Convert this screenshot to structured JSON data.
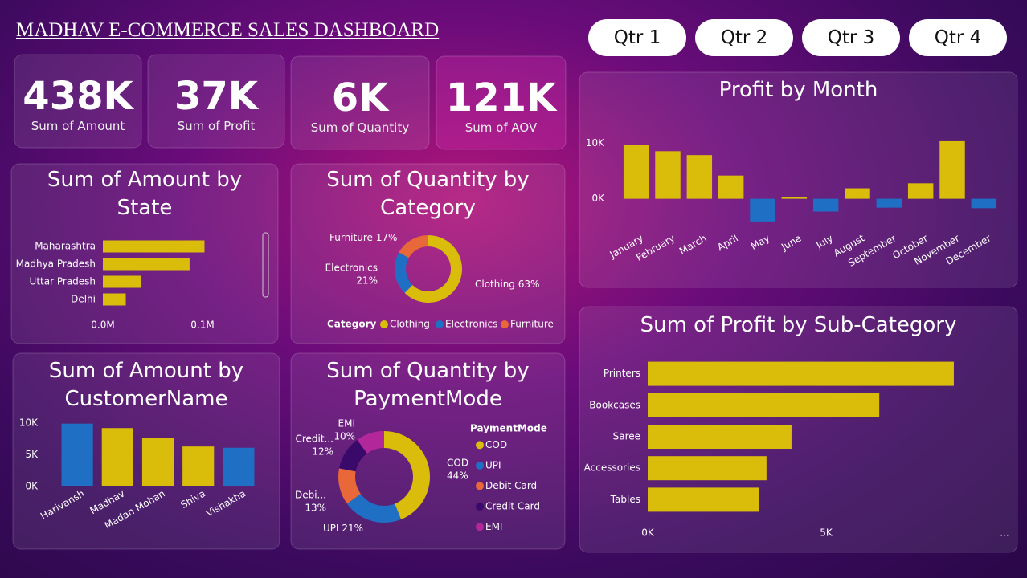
{
  "header": {
    "title": "MADHAV E-COMMERCE SALES DASHBOARD"
  },
  "filters": [
    "Qtr 1",
    "Qtr 2",
    "Qtr 3",
    "Qtr 4"
  ],
  "kpis": [
    {
      "value": "438K",
      "label": "Sum of Amount"
    },
    {
      "value": "37K",
      "label": "Sum of Profit"
    },
    {
      "value": "6K",
      "label": "Sum of Quantity"
    },
    {
      "value": "121K",
      "label": "Sum of AOV"
    }
  ],
  "chart_data": [
    {
      "type": "bar",
      "orientation": "horizontal",
      "title": "Sum of Amount by State",
      "categories": [
        "Maharashtra",
        "Madhya Pradesh",
        "Uttar Pradesh",
        "Delhi"
      ],
      "values": [
        102000,
        87000,
        38000,
        23000
      ],
      "color": "#d9bd0a",
      "xlim": [
        0,
        150000
      ],
      "xticks": [
        {
          "value": 0,
          "label": "0.0M"
        },
        {
          "value": 100000,
          "label": "0.1M"
        }
      ]
    },
    {
      "type": "pie",
      "donut": true,
      "title": "Sum of Quantity by Category",
      "categories": [
        "Clothing",
        "Electronics",
        "Furniture"
      ],
      "values": [
        63,
        21,
        17
      ],
      "value_labels": [
        "63%",
        "21%",
        "17%"
      ],
      "colors": [
        "#d9bd0a",
        "#1f6fc5",
        "#e8683a"
      ],
      "legend_title": "Category",
      "legend": "bottom"
    },
    {
      "type": "bar",
      "title": "Profit by Month",
      "categories": [
        "January",
        "February",
        "March",
        "April",
        "May",
        "June",
        "July",
        "August",
        "September",
        "October",
        "November",
        "December"
      ],
      "values": [
        9700,
        8600,
        7900,
        4200,
        -4100,
        300,
        -2300,
        1900,
        -1600,
        2800,
        10400,
        -1700
      ],
      "color": "#d9bd0a",
      "negative_color": "#1f6fc5",
      "ylim": [
        -6000,
        13000
      ],
      "yticks": [
        {
          "value": 0,
          "label": "0K"
        },
        {
          "value": 10000,
          "label": "10K"
        }
      ]
    },
    {
      "type": "bar",
      "orientation": "horizontal",
      "title": "Sum of Profit by Sub-Category",
      "categories": [
        "Printers",
        "Bookcases",
        "Saree",
        "Accessories",
        "Tables"
      ],
      "values": [
        8580,
        6490,
        4030,
        3330,
        3110
      ],
      "color": "#d9bd0a",
      "xlim": [
        0,
        10000
      ],
      "xticks": [
        {
          "value": 0,
          "label": "0K"
        },
        {
          "value": 5000,
          "label": "5K"
        },
        {
          "value": 10000,
          "label": "..."
        }
      ]
    },
    {
      "type": "bar",
      "title": "Sum of Amount by CustomerName",
      "categories": [
        "Harivansh",
        "Madhav",
        "Madan Mohan",
        "Shiva",
        "Vishakha"
      ],
      "values": [
        9900,
        9200,
        7700,
        6300,
        6100
      ],
      "colors": [
        "#1f6fc5",
        "#d9bd0a",
        "#d9bd0a",
        "#d9bd0a",
        "#1f6fc5"
      ],
      "ylim": [
        0,
        11000
      ],
      "yticks": [
        {
          "value": 0,
          "label": "0K"
        },
        {
          "value": 5000,
          "label": "5K"
        },
        {
          "value": 10000,
          "label": "10K"
        }
      ]
    },
    {
      "type": "pie",
      "donut": true,
      "title": "Sum of Quantity by PaymentMode",
      "categories": [
        "COD",
        "UPI",
        "Debit Card",
        "Credit Card",
        "EMI"
      ],
      "data_labels": [
        "COD",
        "UPI",
        "Debi...",
        "Credit...",
        "EMI"
      ],
      "values": [
        44,
        21,
        13,
        12,
        10
      ],
      "value_labels": [
        "44%",
        "21%",
        "13%",
        "12%",
        "10%"
      ],
      "colors": [
        "#d9bd0a",
        "#1f6fc5",
        "#e8683a",
        "#3a0a6a",
        "#b2279a"
      ],
      "legend_title": "PaymentMode",
      "legend": "right"
    }
  ]
}
